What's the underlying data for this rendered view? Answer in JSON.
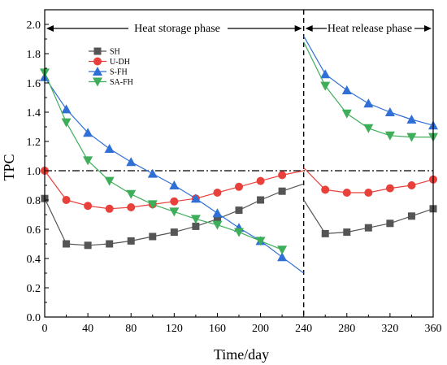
{
  "chart_data": {
    "type": "line",
    "xlabel": "Time/day",
    "ylabel": "TPC",
    "xlim": [
      0,
      360
    ],
    "ylim": [
      0.0,
      2.1
    ],
    "xticks": [
      "0",
      "40",
      "80",
      "120",
      "160",
      "200",
      "240",
      "280",
      "320",
      "360"
    ],
    "yticks": [
      "0.0",
      "0.2",
      "0.4",
      "0.6",
      "0.8",
      "1.0",
      "1.2",
      "1.4",
      "1.6",
      "1.8",
      "2.0"
    ],
    "reference_line_y": 1.0,
    "phase_divider_x": 240,
    "phases": [
      {
        "label": "Heat storage phase",
        "x_range": [
          0,
          240
        ]
      },
      {
        "label": "Heat release phase",
        "x_range": [
          240,
          360
        ]
      }
    ],
    "legend_position": "top-left",
    "series": [
      {
        "name": "SH",
        "color": "#555555",
        "marker": "square",
        "segments": [
          {
            "x": [
              0,
              20,
              40,
              60,
              80,
              100,
              120,
              140,
              160,
              180,
              200,
              220,
              240
            ],
            "y": [
              0.81,
              0.5,
              0.49,
              0.5,
              0.52,
              0.55,
              0.58,
              0.62,
              0.67,
              0.73,
              0.8,
              0.86,
              0.91
            ]
          },
          {
            "x": [
              240,
              260,
              280,
              300,
              320,
              340,
              360
            ],
            "y": [
              0.8,
              0.57,
              0.58,
              0.61,
              0.64,
              0.69,
              0.74
            ]
          }
        ],
        "markers_x": [
          0,
          20,
          40,
          60,
          80,
          100,
          120,
          140,
          160,
          180,
          200,
          220,
          260,
          280,
          300,
          320,
          340,
          360
        ]
      },
      {
        "name": "U-DH",
        "color": "#e8403a",
        "marker": "circle",
        "segments": [
          {
            "x": [
              0,
              20,
              40,
              60,
              80,
              100,
              120,
              140,
              160,
              180,
              200,
              220,
              240
            ],
            "y": [
              1.0,
              0.8,
              0.76,
              0.74,
              0.75,
              0.77,
              0.79,
              0.81,
              0.85,
              0.89,
              0.93,
              0.97,
              1.0
            ]
          },
          {
            "x": [
              240,
              260,
              280,
              300,
              320,
              340,
              360
            ],
            "y": [
              1.02,
              0.87,
              0.85,
              0.85,
              0.88,
              0.9,
              0.94
            ]
          }
        ],
        "markers_x": [
          0,
          20,
          40,
          60,
          80,
          100,
          120,
          140,
          160,
          180,
          200,
          220,
          260,
          280,
          300,
          320,
          340,
          360
        ]
      },
      {
        "name": "S-FH",
        "color": "#2f6fd6",
        "marker": "triangle-up",
        "segments": [
          {
            "x": [
              0,
              20,
              40,
              60,
              80,
              100,
              120,
              140,
              160,
              180,
              200,
              220,
              240
            ],
            "y": [
              1.64,
              1.42,
              1.26,
              1.15,
              1.06,
              0.98,
              0.9,
              0.81,
              0.71,
              0.61,
              0.52,
              0.41,
              0.3
            ]
          },
          {
            "x": [
              240,
              260,
              280,
              300,
              320,
              340,
              360
            ],
            "y": [
              1.92,
              1.66,
              1.55,
              1.46,
              1.4,
              1.35,
              1.31
            ]
          }
        ],
        "markers_x": [
          0,
          20,
          40,
          60,
          80,
          100,
          120,
          140,
          160,
          180,
          200,
          220,
          260,
          280,
          300,
          320,
          340,
          360
        ]
      },
      {
        "name": "SA-FH",
        "color": "#3fae5a",
        "marker": "triangle-down",
        "segments": [
          {
            "x": [
              0,
              20,
              40,
              60,
              80,
              100,
              120,
              140,
              160,
              180,
              200,
              220
            ],
            "y": [
              1.67,
              1.33,
              1.07,
              0.93,
              0.84,
              0.77,
              0.72,
              0.67,
              0.63,
              0.58,
              0.52,
              0.46
            ]
          },
          {
            "x": [
              240,
              260,
              280,
              300,
              320,
              340,
              360
            ],
            "y": [
              1.88,
              1.58,
              1.39,
              1.29,
              1.24,
              1.23,
              1.23
            ]
          }
        ],
        "markers_x": [
          0,
          20,
          40,
          60,
          80,
          100,
          120,
          140,
          160,
          180,
          200,
          220,
          260,
          280,
          300,
          320,
          340,
          360
        ]
      }
    ]
  }
}
